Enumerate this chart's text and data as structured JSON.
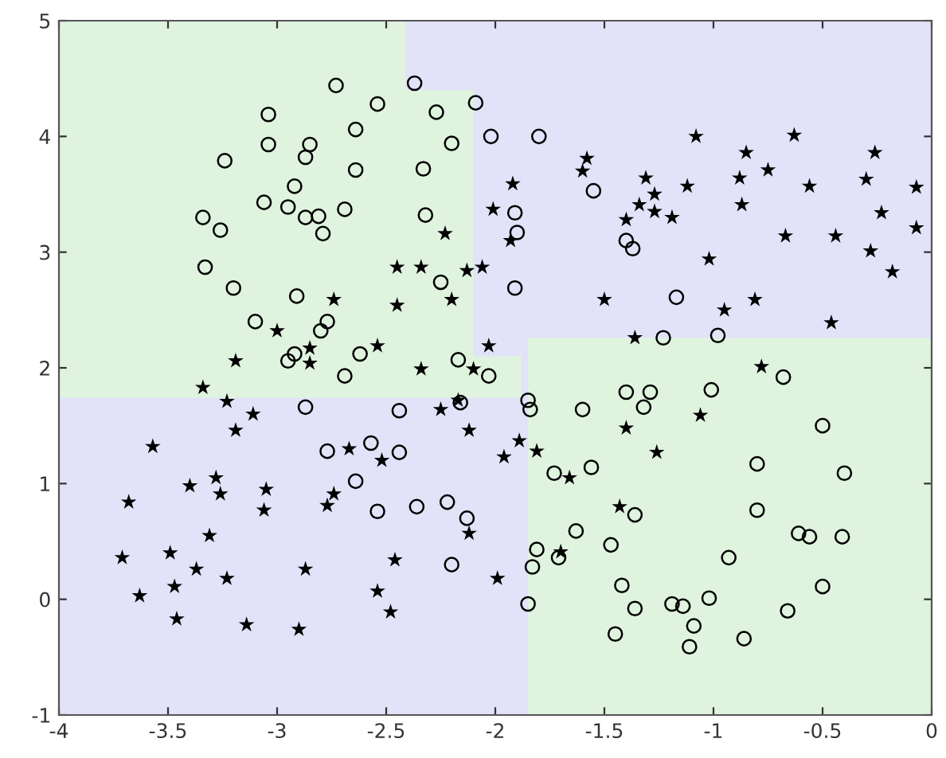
{
  "chart_data": {
    "type": "scatter",
    "xlim": [
      -4,
      0
    ],
    "ylim": [
      -1,
      5
    ],
    "xticks": [
      -4,
      -3.5,
      -3,
      -2.5,
      -2,
      -1.5,
      -1,
      -0.5,
      0
    ],
    "yticks": [
      -1,
      0,
      1,
      2,
      3,
      4,
      5
    ],
    "grid": false,
    "legend": false,
    "series": [
      {
        "type": "line",
        "color": "#dff3df",
        "x": [
          -4,
          -2.41,
          -2.41,
          -2.1,
          -2.1,
          -1.88
        ],
        "lower": [
          1.75,
          1.75,
          1.75,
          1.75,
          1.75,
          1.75
        ],
        "upper": [
          5,
          5,
          4.4,
          4.4,
          2.1,
          2.1
        ],
        "values": [
          1.75,
          1.75,
          1.75,
          1.75,
          1.75,
          1.75
        ]
      },
      {
        "type": "line",
        "color": "#dff3df",
        "x": [
          -1.85,
          0
        ],
        "lower": [
          -1,
          -1
        ],
        "upper": [
          2.25,
          2.25
        ],
        "values": [
          2.25,
          2.25
        ]
      },
      {
        "marker": "circle",
        "color": "#000000",
        "x": [
          -2.73,
          -2.37,
          -3.04,
          -2.54,
          -3.24,
          -3.04,
          -2.85,
          -2.87,
          -2.64,
          -2.64,
          -2.92,
          -3.06,
          -2.95,
          -2.87,
          -2.81,
          -2.79,
          -2.69,
          -3.34,
          -3.26,
          -3.33,
          -3.2,
          -3.1,
          -2.91,
          -2.77,
          -2.8,
          -2.95,
          -2.92,
          -2.62,
          -2.27,
          -2.09,
          -2.2,
          -2.02,
          -1.8,
          -2.33,
          -2.32,
          -1.91,
          -1.9,
          -1.55,
          -1.4,
          -1.37,
          -1.91,
          -2.25,
          -2.17,
          -2.03,
          -2.69,
          -1.17,
          -1.23,
          -0.98,
          -0.68,
          -2.87,
          -2.77,
          -2.64,
          -2.44,
          -2.16,
          -2.57,
          -2.44,
          -2.54,
          -2.36,
          -2.22,
          -2.13,
          -2.2,
          -1.85,
          -1.84,
          -1.6,
          -1.4,
          -1.73,
          -1.56,
          -1.36,
          -1.63,
          -1.81,
          -1.83,
          -1.71,
          -1.85,
          -1.47,
          -1.42,
          -1.36,
          -1.45,
          -1.29,
          -1.32,
          -1.01,
          -0.5,
          -0.8,
          -0.4,
          -0.8,
          -0.61,
          -0.56,
          -0.41,
          -0.93,
          -0.5,
          -1.02,
          -1.19,
          -1.14,
          -0.66,
          -1.09,
          -0.86,
          -1.11
        ],
        "values": [
          4.44,
          4.46,
          4.19,
          4.28,
          3.79,
          3.93,
          3.93,
          3.82,
          4.06,
          3.71,
          3.57,
          3.43,
          3.39,
          3.3,
          3.31,
          3.16,
          3.37,
          3.3,
          3.19,
          2.87,
          2.69,
          2.4,
          2.62,
          2.4,
          2.32,
          2.06,
          2.12,
          2.12,
          4.21,
          4.29,
          3.94,
          4.0,
          4.0,
          3.72,
          3.32,
          3.34,
          3.17,
          3.53,
          3.1,
          3.03,
          2.69,
          2.74,
          2.07,
          1.93,
          1.93,
          2.61,
          2.26,
          2.28,
          1.92,
          1.66,
          1.28,
          1.02,
          1.63,
          1.7,
          1.35,
          1.27,
          0.76,
          0.8,
          0.84,
          0.7,
          0.3,
          1.72,
          1.64,
          1.64,
          1.79,
          1.09,
          1.14,
          0.73,
          0.59,
          0.43,
          0.28,
          0.36,
          -0.04,
          0.47,
          0.12,
          -0.08,
          -0.3,
          1.79,
          1.66,
          1.81,
          1.5,
          1.17,
          1.09,
          0.77,
          0.57,
          0.54,
          0.54,
          0.36,
          0.11,
          0.01,
          -0.04,
          -0.06,
          -0.1,
          -0.23,
          -0.34,
          -0.41
        ]
      },
      {
        "marker": "star",
        "color": "#000000",
        "x": [
          -2.74,
          -3.0,
          -2.85,
          -2.85,
          -3.19,
          -1.58,
          -1.6,
          -1.92,
          -2.01,
          -1.93,
          -2.23,
          -2.45,
          -2.34,
          -2.13,
          -2.06,
          -2.2,
          -2.45,
          -2.54,
          -2.03,
          -2.34,
          -2.1,
          -1.36,
          -1.5,
          -1.4,
          -1.34,
          -1.31,
          -1.08,
          -0.63,
          -0.85,
          -0.75,
          -0.88,
          -1.12,
          -1.27,
          -1.27,
          -1.19,
          -0.87,
          -0.56,
          -0.3,
          -0.26,
          -0.07,
          -0.07,
          -0.23,
          -0.67,
          -0.44,
          -0.28,
          -0.18,
          -1.02,
          -0.81,
          -0.95,
          -0.46,
          -0.78,
          -3.34,
          -3.23,
          -3.11,
          -3.19,
          -3.57,
          -2.67,
          -3.68,
          -3.28,
          -3.26,
          -3.4,
          -3.05,
          -3.06,
          -2.74,
          -2.77,
          -3.31,
          -3.71,
          -3.49,
          -3.37,
          -3.23,
          -3.63,
          -3.47,
          -3.46,
          -3.14,
          -2.87,
          -2.9,
          -2.25,
          -2.17,
          -2.12,
          -2.52,
          -1.96,
          -1.89,
          -1.81,
          -1.66,
          -1.4,
          -1.43,
          -1.7,
          -2.12,
          -2.46,
          -2.54,
          -2.48,
          -1.99,
          -1.06,
          -1.26
        ],
        "values": [
          2.59,
          2.32,
          2.17,
          2.04,
          2.06,
          3.81,
          3.7,
          3.59,
          3.37,
          3.1,
          3.16,
          2.87,
          2.87,
          2.84,
          2.87,
          2.59,
          2.54,
          2.19,
          2.19,
          1.99,
          1.99,
          2.26,
          2.59,
          3.28,
          3.41,
          3.64,
          4.0,
          4.01,
          3.86,
          3.71,
          3.64,
          3.57,
          3.5,
          3.35,
          3.3,
          3.41,
          3.57,
          3.63,
          3.86,
          3.56,
          3.21,
          3.34,
          3.14,
          3.14,
          3.01,
          2.83,
          2.94,
          2.59,
          2.5,
          2.39,
          2.01,
          1.83,
          1.71,
          1.6,
          1.46,
          1.32,
          1.3,
          0.84,
          1.05,
          0.91,
          0.98,
          0.95,
          0.77,
          0.91,
          0.81,
          0.55,
          0.36,
          0.4,
          0.26,
          0.18,
          0.03,
          0.11,
          -0.17,
          -0.22,
          0.26,
          -0.26,
          1.64,
          1.72,
          1.46,
          1.2,
          1.23,
          1.37,
          1.28,
          1.05,
          1.48,
          0.8,
          0.41,
          0.57,
          0.34,
          0.07,
          -0.11,
          0.18,
          1.59,
          1.27
        ]
      }
    ]
  }
}
